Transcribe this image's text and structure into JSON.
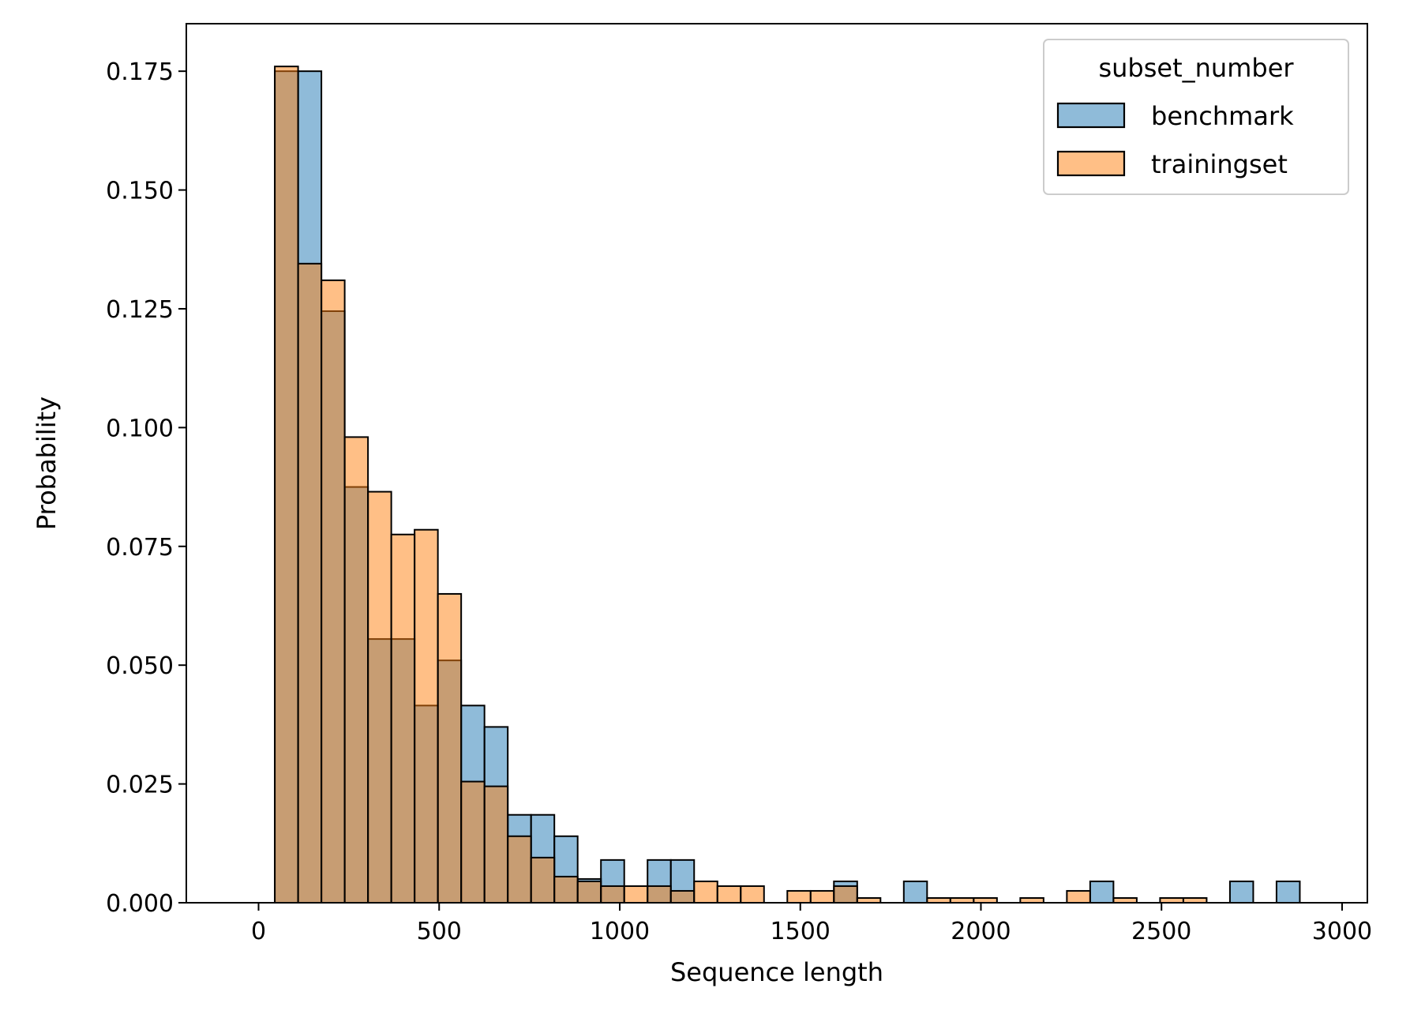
{
  "chart_data": {
    "type": "bar",
    "xlabel": "Sequence length",
    "ylabel": "Probability",
    "xlim": [
      -200,
      3070
    ],
    "ylim": [
      0,
      0.185
    ],
    "x_ticks": [
      0,
      500,
      1000,
      1500,
      2000,
      2500,
      3000
    ],
    "y_ticks": [
      0.0,
      0.025,
      0.05,
      0.075,
      0.1,
      0.125,
      0.15,
      0.175
    ],
    "x_tick_labels": [
      "0",
      "500",
      "1000",
      "1500",
      "2000",
      "2500",
      "3000"
    ],
    "y_tick_labels": [
      "0.000",
      "0.025",
      "0.050",
      "0.075",
      "0.100",
      "0.125",
      "0.150",
      "0.175"
    ],
    "grid": false,
    "legend": {
      "title": "subset_number",
      "position": "top-right"
    },
    "bin_start": 45,
    "bin_width": 64.5,
    "series": [
      {
        "name": "benchmark",
        "color": "#1f77b4",
        "values": [
          0.175,
          0.175,
          0.1245,
          0.0875,
          0.0555,
          0.0555,
          0.0415,
          0.051,
          0.0415,
          0.037,
          0.0185,
          0.0185,
          0.014,
          0.005,
          0.009,
          0.0,
          0.009,
          0.009,
          0.0,
          0.0,
          0.0,
          0.0,
          0.0,
          0.0,
          0.0045,
          0.0,
          0.0,
          0.0045,
          0.0,
          0.0,
          0.0,
          0.0,
          0.0,
          0.0,
          0.0,
          0.0045,
          0.0,
          0.0,
          0.0,
          0.0,
          0.0,
          0.0045,
          0.0,
          0.0045,
          0.0,
          0.0
        ]
      },
      {
        "name": "trainingset",
        "color": "#ff7f0e",
        "values": [
          0.176,
          0.1345,
          0.131,
          0.098,
          0.0865,
          0.0775,
          0.0785,
          0.065,
          0.0255,
          0.0245,
          0.014,
          0.0095,
          0.0055,
          0.0045,
          0.0035,
          0.0035,
          0.0035,
          0.0025,
          0.0045,
          0.0035,
          0.0035,
          0.0,
          0.0025,
          0.0025,
          0.0035,
          0.001,
          0.0,
          0.0,
          0.001,
          0.001,
          0.001,
          0.0,
          0.001,
          0.0,
          0.0025,
          0.0,
          0.001,
          0.0,
          0.001,
          0.001
        ]
      }
    ]
  }
}
